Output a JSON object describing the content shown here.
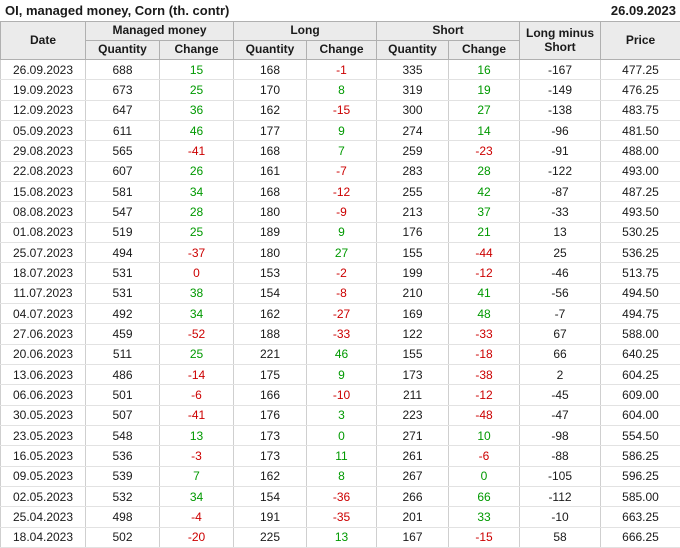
{
  "header": {
    "title": "OI, managed money, Corn (th. contr)",
    "report_date": "26.09.2023"
  },
  "colors": {
    "positive": "#009900",
    "negative": "#cc0000",
    "header_bg": "#ebebeb",
    "grid_line": "#cfcfcf"
  },
  "table": {
    "columns": {
      "date": "Date",
      "managed_money": "Managed money",
      "long": "Long",
      "short": "Short",
      "quantity": "Quantity",
      "change": "Change",
      "long_minus_short": "Long minus Short",
      "price": "Price"
    },
    "rows": [
      {
        "date": "26.09.2023",
        "mm_qty": "688",
        "mm_chg": "15",
        "mm_dir": "pos",
        "long_qty": "168",
        "long_chg": "-1",
        "long_dir": "neg",
        "short_qty": "335",
        "short_chg": "16",
        "short_dir": "pos",
        "lms": "-167",
        "price": "477.25"
      },
      {
        "date": "19.09.2023",
        "mm_qty": "673",
        "mm_chg": "25",
        "mm_dir": "pos",
        "long_qty": "170",
        "long_chg": "8",
        "long_dir": "pos",
        "short_qty": "319",
        "short_chg": "19",
        "short_dir": "pos",
        "lms": "-149",
        "price": "476.25"
      },
      {
        "date": "12.09.2023",
        "mm_qty": "647",
        "mm_chg": "36",
        "mm_dir": "pos",
        "long_qty": "162",
        "long_chg": "-15",
        "long_dir": "neg",
        "short_qty": "300",
        "short_chg": "27",
        "short_dir": "pos",
        "lms": "-138",
        "price": "483.75"
      },
      {
        "date": "05.09.2023",
        "mm_qty": "611",
        "mm_chg": "46",
        "mm_dir": "pos",
        "long_qty": "177",
        "long_chg": "9",
        "long_dir": "pos",
        "short_qty": "274",
        "short_chg": "14",
        "short_dir": "pos",
        "lms": "-96",
        "price": "481.50"
      },
      {
        "date": "29.08.2023",
        "mm_qty": "565",
        "mm_chg": "-41",
        "mm_dir": "neg",
        "long_qty": "168",
        "long_chg": "7",
        "long_dir": "pos",
        "short_qty": "259",
        "short_chg": "-23",
        "short_dir": "neg",
        "lms": "-91",
        "price": "488.00"
      },
      {
        "date": "22.08.2023",
        "mm_qty": "607",
        "mm_chg": "26",
        "mm_dir": "pos",
        "long_qty": "161",
        "long_chg": "-7",
        "long_dir": "neg",
        "short_qty": "283",
        "short_chg": "28",
        "short_dir": "pos",
        "lms": "-122",
        "price": "493.00"
      },
      {
        "date": "15.08.2023",
        "mm_qty": "581",
        "mm_chg": "34",
        "mm_dir": "pos",
        "long_qty": "168",
        "long_chg": "-12",
        "long_dir": "neg",
        "short_qty": "255",
        "short_chg": "42",
        "short_dir": "pos",
        "lms": "-87",
        "price": "487.25"
      },
      {
        "date": "08.08.2023",
        "mm_qty": "547",
        "mm_chg": "28",
        "mm_dir": "pos",
        "long_qty": "180",
        "long_chg": "-9",
        "long_dir": "neg",
        "short_qty": "213",
        "short_chg": "37",
        "short_dir": "pos",
        "lms": "-33",
        "price": "493.50"
      },
      {
        "date": "01.08.2023",
        "mm_qty": "519",
        "mm_chg": "25",
        "mm_dir": "pos",
        "long_qty": "189",
        "long_chg": "9",
        "long_dir": "pos",
        "short_qty": "176",
        "short_chg": "21",
        "short_dir": "pos",
        "lms": "13",
        "price": "530.25"
      },
      {
        "date": "25.07.2023",
        "mm_qty": "494",
        "mm_chg": "-37",
        "mm_dir": "neg",
        "long_qty": "180",
        "long_chg": "27",
        "long_dir": "pos",
        "short_qty": "155",
        "short_chg": "-44",
        "short_dir": "neg",
        "lms": "25",
        "price": "536.25"
      },
      {
        "date": "18.07.2023",
        "mm_qty": "531",
        "mm_chg": "0",
        "mm_dir": "neg",
        "long_qty": "153",
        "long_chg": "-2",
        "long_dir": "neg",
        "short_qty": "199",
        "short_chg": "-12",
        "short_dir": "neg",
        "lms": "-46",
        "price": "513.75"
      },
      {
        "date": "11.07.2023",
        "mm_qty": "531",
        "mm_chg": "38",
        "mm_dir": "pos",
        "long_qty": "154",
        "long_chg": "-8",
        "long_dir": "neg",
        "short_qty": "210",
        "short_chg": "41",
        "short_dir": "pos",
        "lms": "-56",
        "price": "494.50"
      },
      {
        "date": "04.07.2023",
        "mm_qty": "492",
        "mm_chg": "34",
        "mm_dir": "pos",
        "long_qty": "162",
        "long_chg": "-27",
        "long_dir": "neg",
        "short_qty": "169",
        "short_chg": "48",
        "short_dir": "pos",
        "lms": "-7",
        "price": "494.75"
      },
      {
        "date": "27.06.2023",
        "mm_qty": "459",
        "mm_chg": "-52",
        "mm_dir": "neg",
        "long_qty": "188",
        "long_chg": "-33",
        "long_dir": "neg",
        "short_qty": "122",
        "short_chg": "-33",
        "short_dir": "neg",
        "lms": "67",
        "price": "588.00"
      },
      {
        "date": "20.06.2023",
        "mm_qty": "511",
        "mm_chg": "25",
        "mm_dir": "pos",
        "long_qty": "221",
        "long_chg": "46",
        "long_dir": "pos",
        "short_qty": "155",
        "short_chg": "-18",
        "short_dir": "neg",
        "lms": "66",
        "price": "640.25"
      },
      {
        "date": "13.06.2023",
        "mm_qty": "486",
        "mm_chg": "-14",
        "mm_dir": "neg",
        "long_qty": "175",
        "long_chg": "9",
        "long_dir": "pos",
        "short_qty": "173",
        "short_chg": "-38",
        "short_dir": "neg",
        "lms": "2",
        "price": "604.25"
      },
      {
        "date": "06.06.2023",
        "mm_qty": "501",
        "mm_chg": "-6",
        "mm_dir": "neg",
        "long_qty": "166",
        "long_chg": "-10",
        "long_dir": "neg",
        "short_qty": "211",
        "short_chg": "-12",
        "short_dir": "neg",
        "lms": "-45",
        "price": "609.00"
      },
      {
        "date": "30.05.2023",
        "mm_qty": "507",
        "mm_chg": "-41",
        "mm_dir": "neg",
        "long_qty": "176",
        "long_chg": "3",
        "long_dir": "pos",
        "short_qty": "223",
        "short_chg": "-48",
        "short_dir": "neg",
        "lms": "-47",
        "price": "604.00"
      },
      {
        "date": "23.05.2023",
        "mm_qty": "548",
        "mm_chg": "13",
        "mm_dir": "pos",
        "long_qty": "173",
        "long_chg": "0",
        "long_dir": "pos",
        "short_qty": "271",
        "short_chg": "10",
        "short_dir": "pos",
        "lms": "-98",
        "price": "554.50"
      },
      {
        "date": "16.05.2023",
        "mm_qty": "536",
        "mm_chg": "-3",
        "mm_dir": "neg",
        "long_qty": "173",
        "long_chg": "11",
        "long_dir": "pos",
        "short_qty": "261",
        "short_chg": "-6",
        "short_dir": "neg",
        "lms": "-88",
        "price": "586.25"
      },
      {
        "date": "09.05.2023",
        "mm_qty": "539",
        "mm_chg": "7",
        "mm_dir": "pos",
        "long_qty": "162",
        "long_chg": "8",
        "long_dir": "pos",
        "short_qty": "267",
        "short_chg": "0",
        "short_dir": "pos",
        "lms": "-105",
        "price": "596.25"
      },
      {
        "date": "02.05.2023",
        "mm_qty": "532",
        "mm_chg": "34",
        "mm_dir": "pos",
        "long_qty": "154",
        "long_chg": "-36",
        "long_dir": "neg",
        "short_qty": "266",
        "short_chg": "66",
        "short_dir": "pos",
        "lms": "-112",
        "price": "585.00"
      },
      {
        "date": "25.04.2023",
        "mm_qty": "498",
        "mm_chg": "-4",
        "mm_dir": "neg",
        "long_qty": "191",
        "long_chg": "-35",
        "long_dir": "neg",
        "short_qty": "201",
        "short_chg": "33",
        "short_dir": "pos",
        "lms": "-10",
        "price": "663.25"
      },
      {
        "date": "18.04.2023",
        "mm_qty": "502",
        "mm_chg": "-20",
        "mm_dir": "neg",
        "long_qty": "225",
        "long_chg": "13",
        "long_dir": "pos",
        "short_qty": "167",
        "short_chg": "-15",
        "short_dir": "neg",
        "lms": "58",
        "price": "666.25"
      }
    ]
  }
}
